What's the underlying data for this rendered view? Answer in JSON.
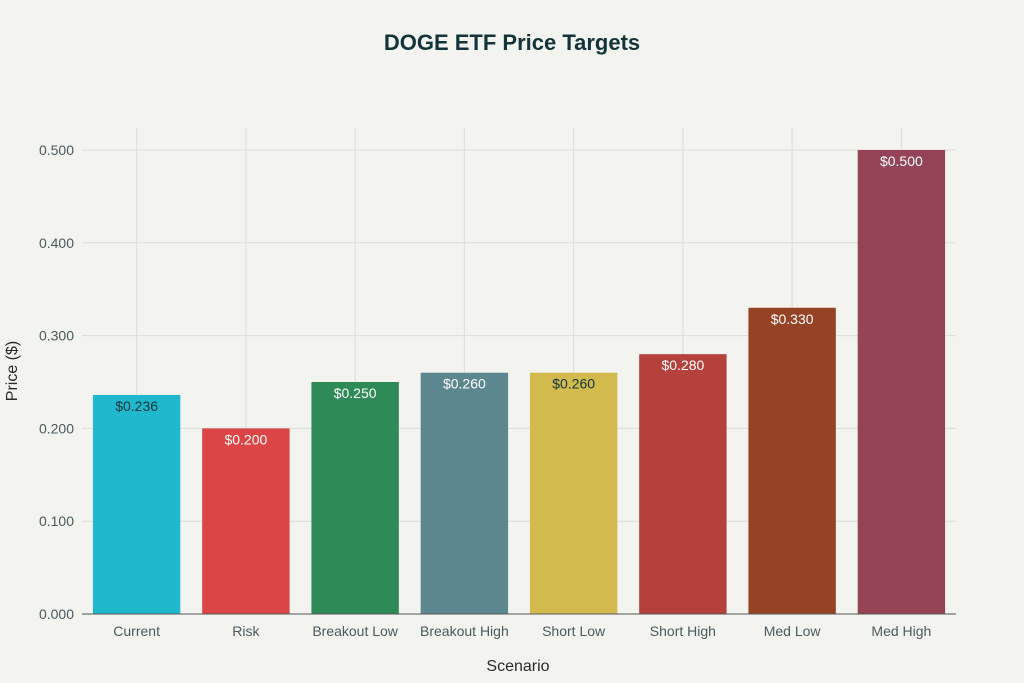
{
  "chart_data": {
    "type": "bar",
    "title": "DOGE ETF Price Targets",
    "xlabel": "Scenario",
    "ylabel": "Price ($)",
    "categories": [
      "Current",
      "Risk",
      "Breakout Low",
      "Breakout High",
      "Short Low",
      "Short High",
      "Med Low",
      "Med High"
    ],
    "values": [
      0.236,
      0.2,
      0.25,
      0.26,
      0.26,
      0.28,
      0.33,
      0.5
    ],
    "data_labels": [
      "$0.236",
      "$0.200",
      "$0.250",
      "$0.260",
      "$0.260",
      "$0.280",
      "$0.330",
      "$0.500"
    ],
    "colors": [
      "#1fb8cd",
      "#db4545",
      "#2e8b57",
      "#5d878f",
      "#d2ba4c",
      "#b4413c",
      "#964325",
      "#944454"
    ],
    "label_colors": [
      "#13343b",
      "#ffffff",
      "#ffffff",
      "#ffffff",
      "#13343b",
      "#ffffff",
      "#ffffff",
      "#ffffff"
    ],
    "ylim": [
      0,
      0.5
    ],
    "yticks": [
      0,
      0.1,
      0.2,
      0.3,
      0.4,
      0.5
    ],
    "ytick_labels": [
      "0.000",
      "0.100",
      "0.200",
      "0.300",
      "0.400",
      "0.500"
    ],
    "grid": true,
    "legend": "none"
  }
}
